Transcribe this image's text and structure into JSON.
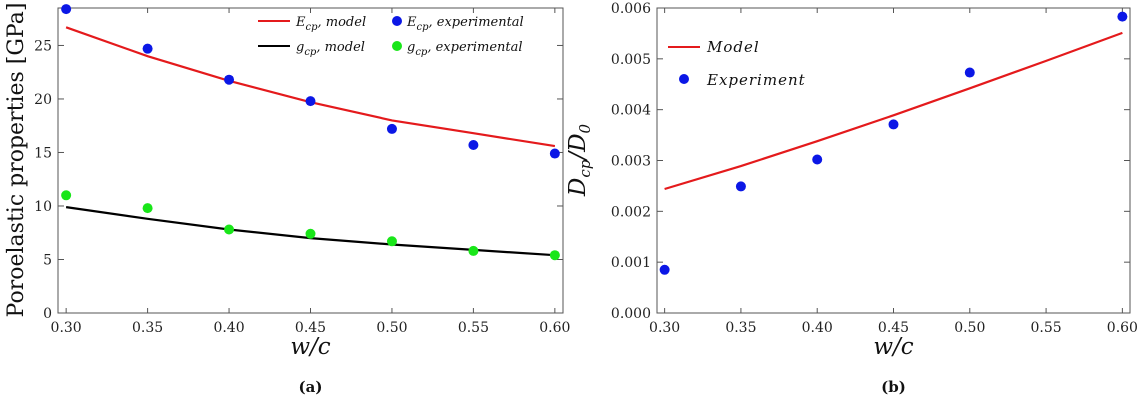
{
  "chart_data": [
    {
      "type": "line",
      "panel": "(a)",
      "xlabel": "w/c",
      "ylabel": "Poroelastic properties [GPa]",
      "xlim": [
        0.295,
        0.605
      ],
      "ylim": [
        0,
        28.5
      ],
      "x_ticks": [
        "0.30",
        "0.35",
        "0.40",
        "0.45",
        "0.50",
        "0.55",
        "0.60"
      ],
      "y_ticks": [
        "0",
        "5",
        "10",
        "15",
        "20",
        "25"
      ],
      "legend_position": "top-right",
      "legend": {
        "E_model": {
          "main": "E",
          "sub": "cp",
          "text": ", model"
        },
        "E_exp": {
          "main": "E",
          "sub": "cp",
          "text": ", experimental"
        },
        "g_model": {
          "main": "g",
          "sub": "cp",
          "text": ", model"
        },
        "g_exp": {
          "main": "g",
          "sub": "cp",
          "text": ", experimental"
        }
      },
      "series": [
        {
          "key": "E_model",
          "kind": "line",
          "color": "#e41a1c",
          "x": [
            0.3,
            0.35,
            0.4,
            0.45,
            0.5,
            0.55,
            0.6
          ],
          "values": [
            26.7,
            24.0,
            21.7,
            19.7,
            18.0,
            16.8,
            15.6
          ]
        },
        {
          "key": "E_exp",
          "kind": "points",
          "color": "#0b17e6",
          "x": [
            0.3,
            0.35,
            0.4,
            0.45,
            0.5,
            0.55,
            0.6
          ],
          "values": [
            28.4,
            24.7,
            21.8,
            19.8,
            17.2,
            15.7,
            14.9
          ]
        },
        {
          "key": "g_model",
          "kind": "line",
          "color": "#000000",
          "x": [
            0.3,
            0.35,
            0.4,
            0.45,
            0.5,
            0.55,
            0.6
          ],
          "values": [
            9.9,
            8.8,
            7.8,
            7.0,
            6.4,
            5.9,
            5.4
          ]
        },
        {
          "key": "g_exp",
          "kind": "points",
          "color": "#19e619",
          "x": [
            0.3,
            0.35,
            0.4,
            0.45,
            0.5,
            0.55,
            0.6
          ],
          "values": [
            11.0,
            9.8,
            7.8,
            7.4,
            6.7,
            5.8,
            5.4
          ]
        }
      ]
    },
    {
      "type": "line",
      "panel": "(b)",
      "xlabel": "w/c",
      "ylabel": {
        "a": "D",
        "asub": "cp",
        "b": "/D",
        "bsub": "0"
      },
      "xlim": [
        0.295,
        0.605
      ],
      "ylim": [
        0,
        0.006
      ],
      "x_ticks": [
        "0.30",
        "0.35",
        "0.40",
        "0.45",
        "0.50",
        "0.55",
        "0.60"
      ],
      "y_ticks": [
        "0.000",
        "0.001",
        "0.002",
        "0.003",
        "0.004",
        "0.005",
        "0.006"
      ],
      "legend_position": "top-left",
      "series": [
        {
          "key": "model",
          "name": "Model",
          "kind": "line",
          "color": "#e41a1c",
          "x": [
            0.3,
            0.35,
            0.4,
            0.45,
            0.5,
            0.55,
            0.6
          ],
          "values": [
            0.00244,
            0.00289,
            0.00338,
            0.00389,
            0.00442,
            0.00496,
            0.00551
          ]
        },
        {
          "key": "experiment",
          "name": "Experiment",
          "kind": "points",
          "color": "#0b17e6",
          "x": [
            0.3,
            0.35,
            0.4,
            0.45,
            0.5,
            0.6
          ],
          "values": [
            0.00085,
            0.00249,
            0.00302,
            0.00371,
            0.00473,
            0.00583
          ]
        }
      ]
    }
  ]
}
